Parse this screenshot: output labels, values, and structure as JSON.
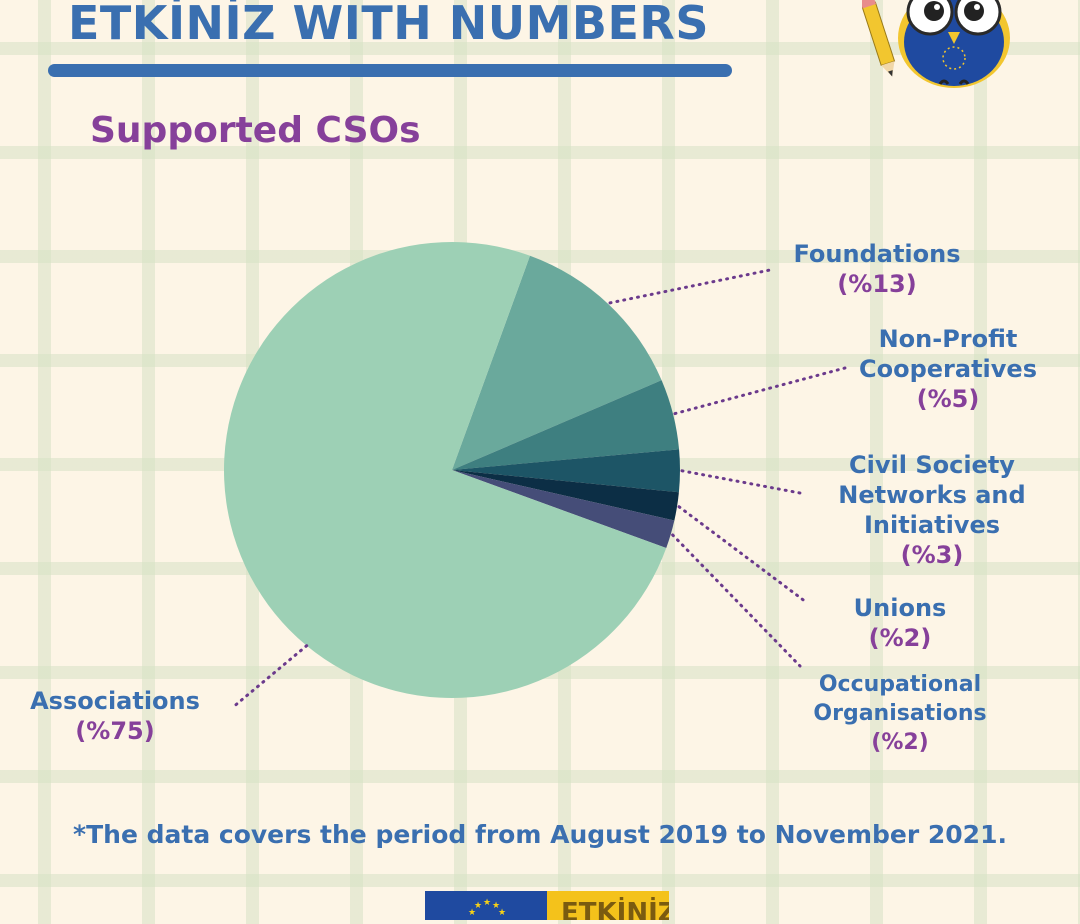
{
  "header": {
    "title": "ETKİNİZ WITH NUMBERS",
    "subtitle": "Supported CSOs"
  },
  "footer": {
    "note": "*The data covers the period from August 2019 to November 2021.",
    "logo_text": "ETKİNİZ"
  },
  "colors": {
    "background": "#fdf5e6",
    "title": "#3a6fb0",
    "subtitle": "#86409a",
    "percent_label": "#86409a",
    "leader_line": "#6b3a8c"
  },
  "chart_data": {
    "type": "pie",
    "title": "Supported CSOs",
    "slices": [
      {
        "name": "Associations",
        "label_lines": [
          "Associations"
        ],
        "value": 75,
        "value_label": "(%75)",
        "color": "#9dd0b5"
      },
      {
        "name": "Foundations",
        "label_lines": [
          "Foundations"
        ],
        "value": 13,
        "value_label": "(%13)",
        "color": "#6aa99c"
      },
      {
        "name": "Non-Profit Cooperatives",
        "label_lines": [
          "Non-Profit",
          "Cooperatives"
        ],
        "value": 5,
        "value_label": "(%5)",
        "color": "#3e7f80"
      },
      {
        "name": "Civil Society Networks and Initiatives",
        "label_lines": [
          "Civil Society",
          "Networks and",
          "Initiatives"
        ],
        "value": 3,
        "value_label": "(%3)",
        "color": "#1d5566"
      },
      {
        "name": "Unions",
        "label_lines": [
          "Unions"
        ],
        "value": 2,
        "value_label": "(%2)",
        "color": "#0c2e45"
      },
      {
        "name": "Occupational Organisations",
        "label_lines": [
          "Occupational",
          "Organisations"
        ],
        "value": 2,
        "value_label": "(%2)",
        "color": "#454d78"
      }
    ]
  }
}
